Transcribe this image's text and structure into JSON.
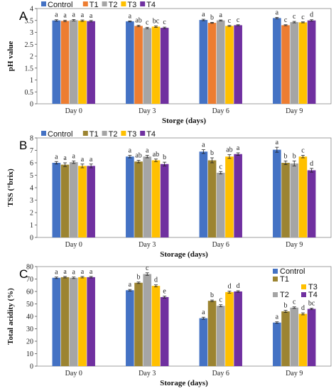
{
  "chart_data": [
    {
      "type": "bar",
      "panel": "A",
      "xlabel": "Storge (days)",
      "ylabel": "pH value",
      "ylim": [
        0,
        4
      ],
      "yticks": [
        "0",
        "0.5",
        "1",
        "1.5",
        "2",
        "2.5",
        "3",
        "3.5",
        "4"
      ],
      "categories": [
        "Day 0",
        "Day 3",
        "Day 6",
        "Day 9"
      ],
      "legend": "top",
      "series": [
        {
          "name": "Control",
          "color": "#4472C4",
          "values": [
            3.5,
            3.46,
            3.52,
            3.6
          ],
          "errors": [
            0.03,
            0.02,
            0.03,
            0.03
          ],
          "labels": [
            "a",
            "a",
            "a",
            "a"
          ]
        },
        {
          "name": "T1",
          "color": "#ED7D31",
          "values": [
            3.48,
            3.27,
            3.4,
            3.3
          ],
          "errors": [
            0.03,
            0.03,
            0.02,
            0.02
          ],
          "labels": [
            "a",
            "ab",
            "b",
            "c"
          ]
        },
        {
          "name": "T2",
          "color": "#A5A5A5",
          "values": [
            3.51,
            3.18,
            3.5,
            3.43
          ],
          "errors": [
            0.03,
            0.03,
            0.02,
            0.03
          ],
          "labels": [
            "a",
            "c",
            "a",
            "c"
          ]
        },
        {
          "name": "T3",
          "color": "#FFC000",
          "values": [
            3.49,
            3.24,
            3.27,
            3.42
          ],
          "errors": [
            0.03,
            0.03,
            0.02,
            0.02
          ],
          "labels": [
            "a",
            "bc",
            "c",
            "c"
          ]
        },
        {
          "name": "T4",
          "color": "#7030A0",
          "values": [
            3.47,
            3.19,
            3.3,
            3.5
          ],
          "errors": [
            0.03,
            0.03,
            0.02,
            0.03
          ],
          "labels": [
            "a",
            "c",
            "c",
            "d"
          ]
        }
      ]
    },
    {
      "type": "bar",
      "panel": "B",
      "xlabel": "Storage (days)",
      "ylabel": "TSS (°brix)",
      "ylim": [
        0,
        8
      ],
      "yticks": [
        "0",
        "1",
        "2",
        "3",
        "4",
        "5",
        "6",
        "7",
        "8"
      ],
      "categories": [
        "Day 0",
        "Day 3",
        "Day 6",
        "Day 9"
      ],
      "legend": "top",
      "series": [
        {
          "name": "Control",
          "color": "#4472C4",
          "values": [
            6.0,
            6.5,
            6.9,
            7.05
          ],
          "errors": [
            0.1,
            0.1,
            0.15,
            0.2
          ],
          "labels": [
            "a",
            "a",
            "a",
            "a"
          ]
        },
        {
          "name": "T1",
          "color": "#9C8431",
          "values": [
            5.85,
            6.1,
            6.2,
            6.0
          ],
          "errors": [
            0.15,
            0.1,
            0.2,
            0.15
          ],
          "labels": [
            "a",
            "ab",
            "b",
            "b"
          ]
        },
        {
          "name": "T2",
          "color": "#A5A5A5",
          "values": [
            6.05,
            6.5,
            5.2,
            5.95
          ],
          "errors": [
            0.1,
            0.1,
            0.1,
            0.2
          ],
          "labels": [
            "a",
            "a",
            "c",
            "b"
          ]
        },
        {
          "name": "T3",
          "color": "#FFC000",
          "values": [
            5.75,
            6.2,
            6.5,
            6.5
          ],
          "errors": [
            0.15,
            0.1,
            0.15,
            0.1
          ],
          "labels": [
            "a",
            "ab",
            "ab",
            "c"
          ]
        },
        {
          "name": "T4",
          "color": "#7030A0",
          "values": [
            5.75,
            5.9,
            6.7,
            5.4
          ],
          "errors": [
            0.15,
            0.15,
            0.1,
            0.15
          ],
          "labels": [
            "a",
            "b",
            "a",
            "d"
          ]
        }
      ]
    },
    {
      "type": "bar",
      "panel": "C",
      "xlabel": "Storage (days)",
      "ylabel": "Total acidity (%)",
      "ylim": [
        0,
        80
      ],
      "yticks": [
        "0",
        "10",
        "20",
        "30",
        "40",
        "50",
        "60",
        "70",
        "80"
      ],
      "categories": [
        "Day 0",
        "Day 3",
        "Day 6",
        "Day 9"
      ],
      "legend": "top-right",
      "series": [
        {
          "name": "Control",
          "color": "#4472C4",
          "values": [
            71,
            61,
            38.5,
            35
          ],
          "errors": [
            0.6,
            0.6,
            0.8,
            0.6
          ],
          "labels": [
            "a",
            "a",
            "a",
            "a"
          ]
        },
        {
          "name": "T1",
          "color": "#9C8431",
          "values": [
            71.5,
            67,
            52.5,
            44
          ],
          "errors": [
            0.6,
            0.6,
            0.6,
            0.8
          ],
          "labels": [
            "a",
            "b",
            "b",
            "b"
          ]
        },
        {
          "name": "T2",
          "color": "#A5A5A5",
          "values": [
            71,
            74,
            48.5,
            47
          ],
          "errors": [
            0.6,
            1.0,
            0.8,
            0.6
          ],
          "labels": [
            "a",
            "c",
            "c",
            "c"
          ]
        },
        {
          "name": "T3",
          "color": "#FFC000",
          "values": [
            71.5,
            64.5,
            59.5,
            42
          ],
          "errors": [
            0.6,
            0.8,
            0.8,
            0.8
          ],
          "labels": [
            "a",
            "d",
            "d",
            "d"
          ]
        },
        {
          "name": "T4",
          "color": "#7030A0",
          "values": [
            71.5,
            55.5,
            60,
            46
          ],
          "errors": [
            0.6,
            0.8,
            0.6,
            0.6
          ],
          "labels": [
            "a",
            "e",
            "d",
            "bc"
          ]
        }
      ]
    }
  ]
}
